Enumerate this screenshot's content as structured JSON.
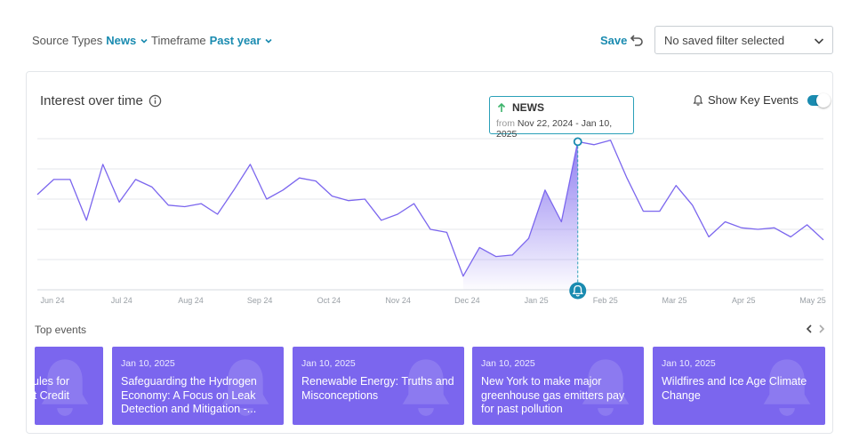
{
  "filters": {
    "source_types": {
      "label": "Source Types",
      "value": "News"
    },
    "timeframe": {
      "label": "Timeframe",
      "value": "Past year"
    },
    "save_label": "Save",
    "saved_filter_placeholder": "No saved filter selected"
  },
  "card": {
    "title": "Interest over time",
    "key_events_label": "Show Key Events",
    "key_events_enabled": true
  },
  "tooltip": {
    "series": "NEWS",
    "direction": "up",
    "from_label": "from",
    "range": "Nov 22, 2024 - Jan 10, 2025"
  },
  "colors": {
    "accent": "#1a8bb0",
    "line": "#7b66ee",
    "event_card": "#7b66ee",
    "tooltip_arrow": "#3bb36a"
  },
  "chart_data": {
    "type": "line",
    "x_ticks": [
      "Jun 24",
      "Jul 24",
      "Aug 24",
      "Sep 24",
      "Oct 24",
      "Nov 24",
      "Dec 24",
      "Jan 25",
      "Feb 25",
      "Mar 25",
      "Apr 25",
      "May 25"
    ],
    "ylim": [
      0,
      100
    ],
    "grid": true,
    "series": [
      {
        "values": [
          63,
          73,
          73,
          46,
          83,
          58,
          73,
          68,
          56,
          55,
          57,
          50,
          66,
          83,
          60,
          66,
          74,
          72,
          62,
          59,
          60,
          46,
          50,
          57,
          40,
          38,
          9,
          28,
          22,
          23,
          34,
          66,
          45,
          98,
          96,
          99,
          74,
          52,
          52,
          69,
          56,
          35,
          45,
          41,
          40,
          41,
          35,
          43,
          33
        ]
      }
    ],
    "highlight": {
      "start_index": 26,
      "end_index": 33,
      "event_index": 33
    }
  },
  "top_events": {
    "title": "Top events",
    "items": [
      {
        "date": "",
        "title": "ules for\nt Credit"
      },
      {
        "date": "Jan 10, 2025",
        "title": "Safeguarding the Hydrogen Economy: A Focus on Leak Detection and Mitigation -..."
      },
      {
        "date": "Jan 10, 2025",
        "title": "Renewable Energy: Truths and Misconceptions"
      },
      {
        "date": "Jan 10, 2025",
        "title": "New York to make major greenhouse gas emitters pay for past pollution"
      },
      {
        "date": "Jan 10, 2025",
        "title": "Wildfires and Ice Age Climate Change"
      }
    ]
  }
}
